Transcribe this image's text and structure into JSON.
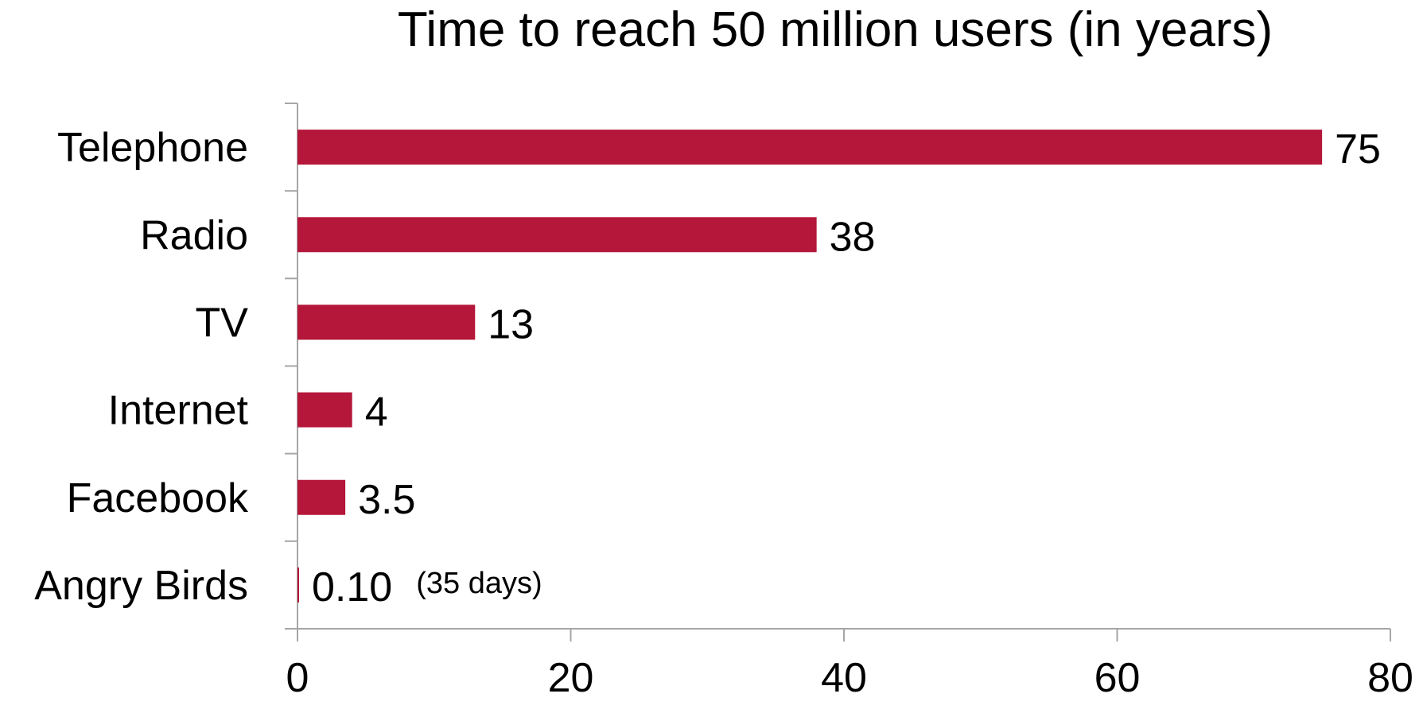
{
  "chart_data": {
    "type": "bar",
    "orientation": "horizontal",
    "title": "Time to reach 50 million users (in years)",
    "xlabel": "",
    "ylabel": "",
    "categories": [
      "Telephone",
      "Radio",
      "TV",
      "Internet",
      "Facebook",
      "Angry Birds"
    ],
    "values": [
      75,
      38,
      13,
      4,
      3.5,
      0.1
    ],
    "value_labels": [
      "75",
      "38",
      "13",
      "4",
      "3.5",
      "0.10"
    ],
    "annotations": [
      {
        "category": "Angry Birds",
        "text": "(35 days)"
      }
    ],
    "xlim": [
      0,
      80
    ],
    "xticks": [
      0,
      20,
      40,
      60,
      80
    ],
    "grid": false,
    "legend": "none",
    "bar_color": "#B5173A",
    "axis_color": "#A6A6A6"
  }
}
